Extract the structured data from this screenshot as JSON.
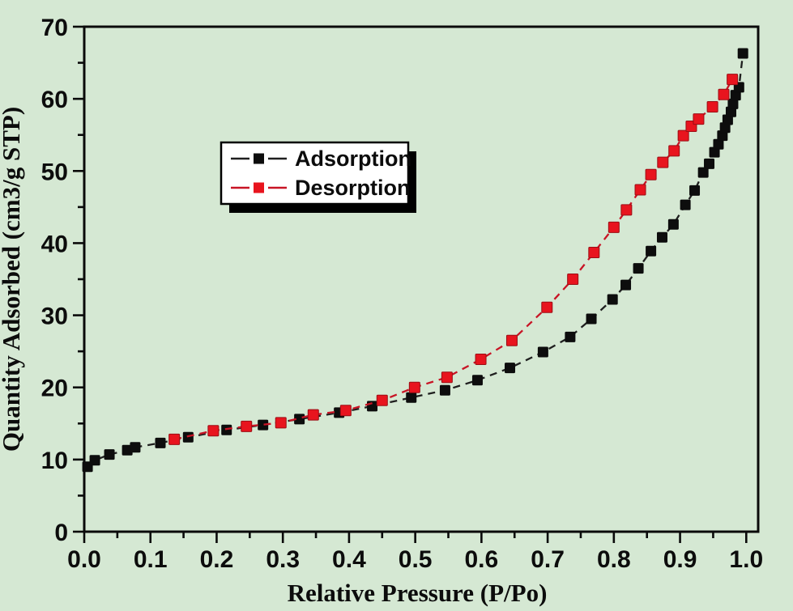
{
  "figure": {
    "background_color": "#d5e8d3",
    "frame_color": "#0a0a0a"
  },
  "chart_data": {
    "type": "line",
    "title": "",
    "xlabel": "Relative Pressure (P/Po)",
    "ylabel": "Quantity Adsorbed (cm3/g STP)",
    "xlim": [
      0,
      1.018
    ],
    "ylim": [
      0,
      70
    ],
    "grid": false,
    "legend_position": "upper-left-inside",
    "x_ticks": {
      "major": [
        {
          "v": 0.0,
          "label": "0.0"
        },
        {
          "v": 0.1,
          "label": "0.1"
        },
        {
          "v": 0.2,
          "label": "0.2"
        },
        {
          "v": 0.3,
          "label": "0.3"
        },
        {
          "v": 0.4,
          "label": "0.4"
        },
        {
          "v": 0.5,
          "label": "0.5"
        },
        {
          "v": 0.6,
          "label": "0.6"
        },
        {
          "v": 0.7,
          "label": "0.7"
        },
        {
          "v": 0.8,
          "label": "0.8"
        },
        {
          "v": 0.9,
          "label": "0.9"
        },
        {
          "v": 1.0,
          "label": "1.0"
        }
      ],
      "minor": [
        0.05,
        0.15,
        0.25,
        0.35,
        0.45,
        0.55,
        0.65,
        0.75,
        0.85,
        0.95
      ]
    },
    "y_ticks": {
      "major": [
        {
          "v": 0,
          "label": "0"
        },
        {
          "v": 10,
          "label": "10"
        },
        {
          "v": 20,
          "label": "20"
        },
        {
          "v": 30,
          "label": "30"
        },
        {
          "v": 40,
          "label": "40"
        },
        {
          "v": 50,
          "label": "50"
        },
        {
          "v": 60,
          "label": "60"
        },
        {
          "v": 70,
          "label": "70"
        }
      ],
      "minor": [
        5,
        15,
        25,
        35,
        45,
        55,
        65
      ]
    },
    "series": [
      {
        "name": "Adsorption",
        "marker": "square",
        "marker_size": 12,
        "color": "#0d0d0d",
        "line_color": "#1f1f1f",
        "edge_color": "#0d0d0d",
        "points": [
          [
            0.005,
            9.0
          ],
          [
            0.016,
            9.9
          ],
          [
            0.038,
            10.7
          ],
          [
            0.065,
            11.3
          ],
          [
            0.077,
            11.7
          ],
          [
            0.115,
            12.3
          ],
          [
            0.157,
            13.1
          ],
          [
            0.215,
            14.1
          ],
          [
            0.27,
            14.8
          ],
          [
            0.325,
            15.6
          ],
          [
            0.385,
            16.5
          ],
          [
            0.435,
            17.4
          ],
          [
            0.494,
            18.6
          ],
          [
            0.545,
            19.6
          ],
          [
            0.594,
            21.0
          ],
          [
            0.643,
            22.7
          ],
          [
            0.693,
            24.9
          ],
          [
            0.734,
            27.0
          ],
          [
            0.766,
            29.5
          ],
          [
            0.798,
            32.2
          ],
          [
            0.818,
            34.2
          ],
          [
            0.837,
            36.5
          ],
          [
            0.856,
            38.9
          ],
          [
            0.873,
            40.8
          ],
          [
            0.89,
            42.6
          ],
          [
            0.908,
            45.3
          ],
          [
            0.922,
            47.3
          ],
          [
            0.935,
            49.8
          ],
          [
            0.944,
            51.0
          ],
          [
            0.952,
            52.6
          ],
          [
            0.958,
            53.7
          ],
          [
            0.964,
            54.9
          ],
          [
            0.968,
            56.0
          ],
          [
            0.972,
            57.1
          ],
          [
            0.977,
            58.2
          ],
          [
            0.98,
            59.3
          ],
          [
            0.984,
            60.5
          ],
          [
            0.989,
            61.6
          ],
          [
            0.995,
            66.3
          ]
        ]
      },
      {
        "name": "Desorption",
        "marker": "square",
        "marker_size": 13,
        "color": "#e8141e",
        "line_color": "#c81425",
        "edge_color": "#9b0d14",
        "points": [
          [
            0.136,
            12.8
          ],
          [
            0.195,
            14.0
          ],
          [
            0.245,
            14.6
          ],
          [
            0.297,
            15.1
          ],
          [
            0.346,
            16.2
          ],
          [
            0.395,
            16.8
          ],
          [
            0.45,
            18.2
          ],
          [
            0.499,
            20.0
          ],
          [
            0.548,
            21.4
          ],
          [
            0.599,
            23.9
          ],
          [
            0.646,
            26.5
          ],
          [
            0.699,
            31.1
          ],
          [
            0.738,
            35.0
          ],
          [
            0.77,
            38.7
          ],
          [
            0.8,
            42.2
          ],
          [
            0.819,
            44.6
          ],
          [
            0.84,
            47.4
          ],
          [
            0.856,
            49.5
          ],
          [
            0.874,
            51.2
          ],
          [
            0.891,
            52.8
          ],
          [
            0.905,
            54.9
          ],
          [
            0.917,
            56.2
          ],
          [
            0.928,
            57.2
          ],
          [
            0.949,
            58.9
          ],
          [
            0.966,
            60.6
          ],
          [
            0.979,
            62.7
          ]
        ]
      }
    ]
  }
}
